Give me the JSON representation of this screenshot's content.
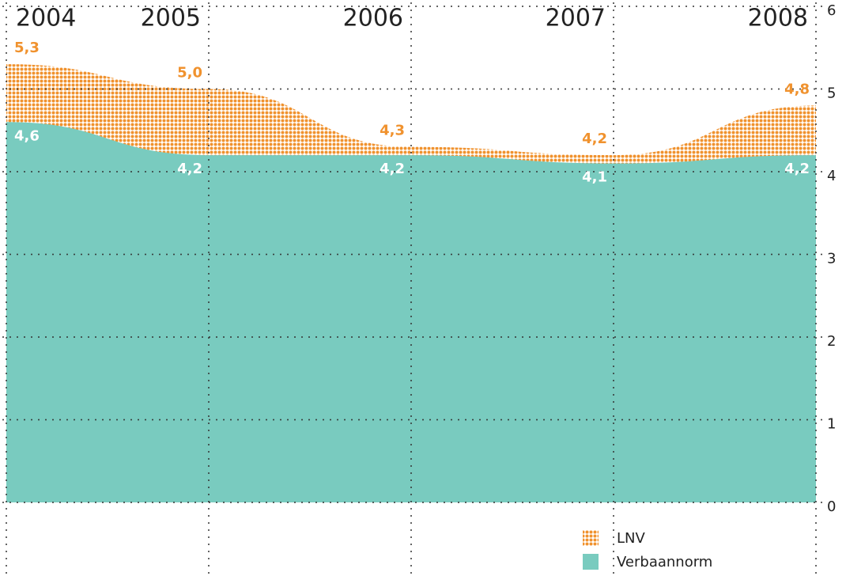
{
  "chart_data": {
    "type": "area",
    "categories": [
      "2004",
      "2005",
      "2006",
      "2007",
      "2008"
    ],
    "series": [
      {
        "name": "LNV",
        "color": "#f0922e",
        "pattern": "dots",
        "values": [
          5.3,
          5.0,
          4.3,
          4.2,
          4.8
        ],
        "value_labels": [
          "5,3",
          "5,0",
          "4,3",
          "4,2",
          "4,8"
        ]
      },
      {
        "name": "Verbaannorm",
        "color": "#79cbbf",
        "values": [
          4.6,
          4.2,
          4.2,
          4.1,
          4.2
        ],
        "value_labels": [
          "4,6",
          "4,2",
          "4,2",
          "4,1",
          "4,2"
        ]
      }
    ],
    "ylim": [
      0,
      6
    ],
    "yticks": [
      0,
      1,
      2,
      3,
      4,
      5,
      6
    ],
    "grid": true,
    "legend": "lower right"
  }
}
